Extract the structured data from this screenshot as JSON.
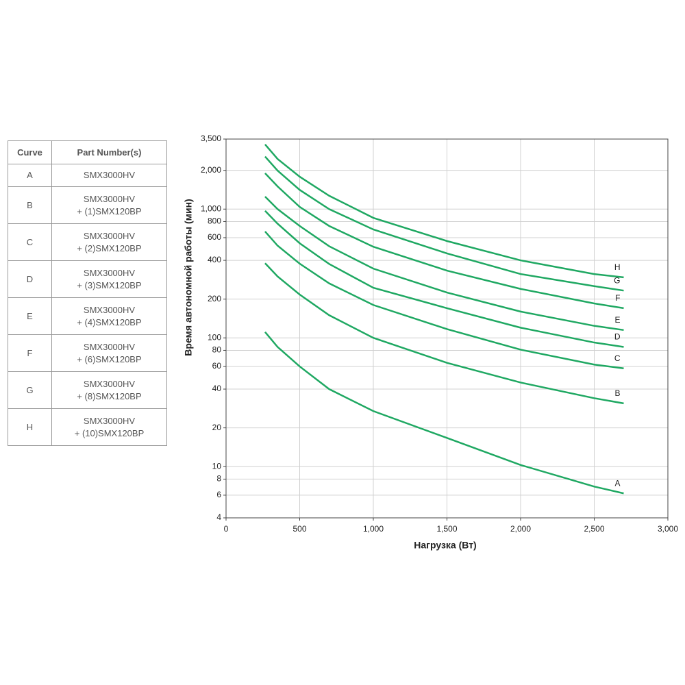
{
  "table": {
    "header": [
      "Curve",
      "Part Number(s)"
    ],
    "rows": [
      [
        "A",
        [
          "SMX3000HV"
        ]
      ],
      [
        "B",
        [
          "SMX3000HV",
          "+ (1)SMX120BP"
        ]
      ],
      [
        "C",
        [
          "SMX3000HV",
          "+ (2)SMX120BP"
        ]
      ],
      [
        "D",
        [
          "SMX3000HV",
          "+ (3)SMX120BP"
        ]
      ],
      [
        "E",
        [
          "SMX3000HV",
          "+ (4)SMX120BP"
        ]
      ],
      [
        "F",
        [
          "SMX3000HV",
          "+ (6)SMX120BP"
        ]
      ],
      [
        "G",
        [
          "SMX3000HV",
          "+ (8)SMX120BP"
        ]
      ],
      [
        "H",
        [
          "SMX3000HV",
          "+ (10)SMX120BP"
        ]
      ]
    ]
  },
  "chart_data": {
    "type": "line",
    "x_label": "Нагрузка (Вт)",
    "y_label": "Время автономной работы (мин)",
    "x": [
      265,
      350,
      500,
      700,
      1000,
      1500,
      2000,
      2500,
      2700
    ],
    "series": [
      {
        "name": "A",
        "color": "#1fa862",
        "values": [
          111,
          85,
          60,
          40,
          27,
          16.7,
          10.3,
          7,
          6.2
        ]
      },
      {
        "name": "B",
        "color": "#1fa862",
        "values": [
          380,
          300,
          217,
          150,
          100,
          64,
          45,
          34,
          31
        ]
      },
      {
        "name": "C",
        "color": "#1fa862",
        "values": [
          670,
          520,
          377,
          265,
          180,
          117,
          81,
          62,
          58
        ]
      },
      {
        "name": "D",
        "color": "#1fa862",
        "values": [
          970,
          770,
          543,
          375,
          245,
          170,
          120,
          92,
          85
        ]
      },
      {
        "name": "E",
        "color": "#1fa862",
        "values": [
          1250,
          1000,
          740,
          515,
          345,
          225,
          160,
          124,
          115
        ]
      },
      {
        "name": "F",
        "color": "#1fa862",
        "values": [
          1900,
          1500,
          1040,
          740,
          510,
          333,
          240,
          185,
          170
        ]
      },
      {
        "name": "G",
        "color": "#1fa862",
        "values": [
          2560,
          1990,
          1410,
          1000,
          695,
          453,
          313,
          252,
          233
        ]
      },
      {
        "name": "H",
        "color": "#1fa862",
        "values": [
          3180,
          2450,
          1785,
          1270,
          855,
          565,
          400,
          313,
          295
        ]
      }
    ],
    "xlim": [
      0,
      3000
    ],
    "xticks": [
      0,
      500,
      {
        "value": 1000,
        "label": "1,000"
      },
      {
        "value": 1500,
        "label": "1,500"
      },
      {
        "value": 2000,
        "label": "2,000"
      },
      {
        "value": 2500,
        "label": "2,500"
      },
      {
        "value": 3000,
        "label": "3,000"
      }
    ],
    "ylim": [
      4,
      3500
    ],
    "y_scale": "log",
    "yticks": [
      4,
      6,
      8,
      10,
      20,
      40,
      60,
      80,
      100,
      200,
      400,
      600,
      800,
      {
        "value": 1000,
        "label": "1,000"
      },
      {
        "value": 2000,
        "label": "2,000"
      },
      {
        "value": 3500,
        "label": "3,500"
      }
    ],
    "grid": true
  }
}
